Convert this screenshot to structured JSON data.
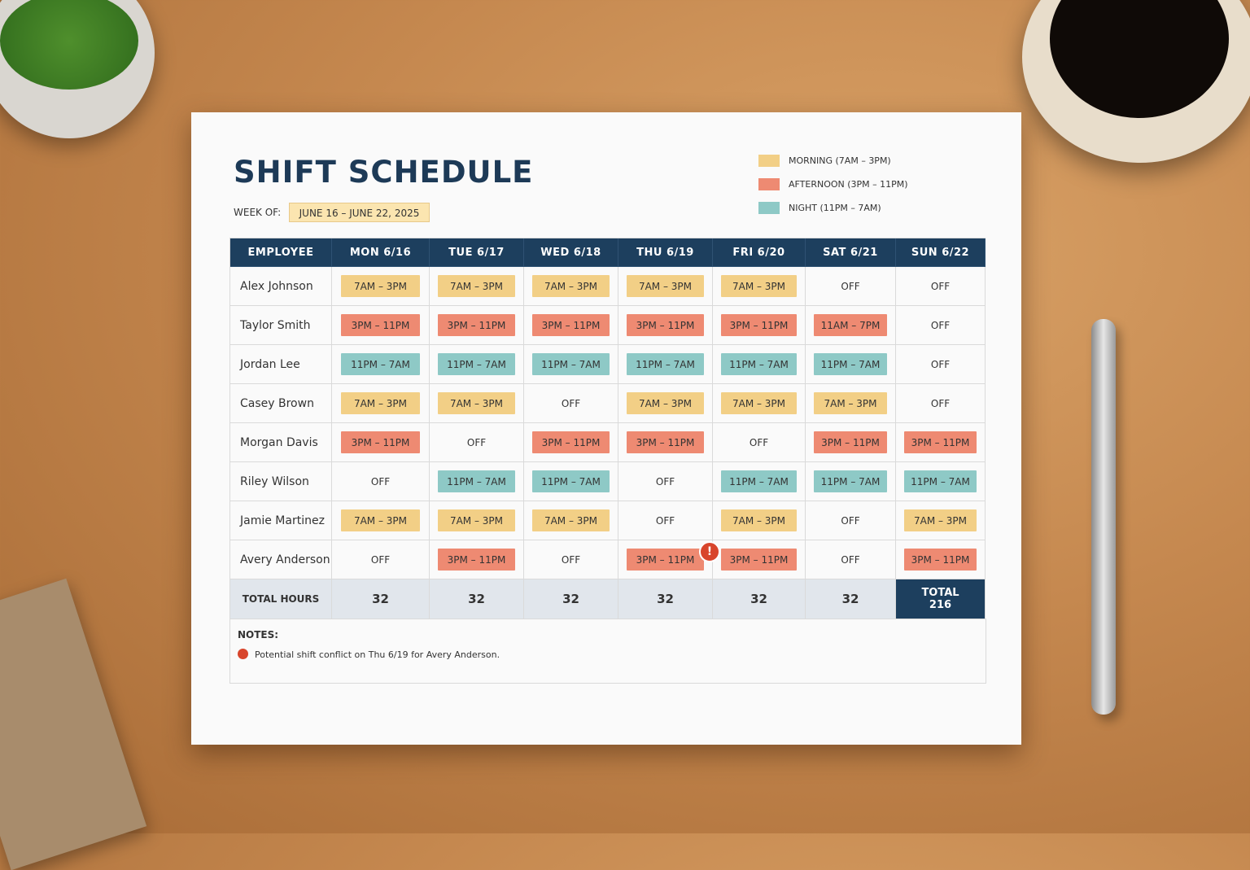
{
  "title": "SHIFT SCHEDULE",
  "week": {
    "label": "WEEK OF:",
    "value": "JUNE 16 – JUNE 22, 2025"
  },
  "legend": [
    {
      "label": "MORNING (7AM – 3PM)",
      "color": "#f2cf86"
    },
    {
      "label": "AFTERNOON (3PM – 11PM)",
      "color": "#ee8a72"
    },
    {
      "label": "NIGHT (11PM – 7AM)",
      "color": "#8ec9c6"
    }
  ],
  "table": {
    "header": [
      "EMPLOYEE",
      "MON 6/16",
      "TUE 6/17",
      "WED 6/18",
      "THU 6/19",
      "FRI 6/20",
      "SAT 6/21",
      "SUN 6/22"
    ],
    "rows": [
      {
        "name": "Alex Johnson",
        "shifts": [
          {
            "text": "7AM – 3PM",
            "color": "#f2cf86"
          },
          {
            "text": "7AM – 3PM",
            "color": "#f2cf86"
          },
          {
            "text": "7AM – 3PM",
            "color": "#f2cf86"
          },
          {
            "text": "7AM – 3PM",
            "color": "#f2cf86"
          },
          {
            "text": "7AM – 3PM",
            "color": "#f2cf86"
          },
          "OFF",
          "OFF"
        ]
      },
      {
        "name": "Taylor Smith",
        "shifts": [
          {
            "text": "3PM – 11PM",
            "color": "#ee8a72"
          },
          {
            "text": "3PM – 11PM",
            "color": "#ee8a72"
          },
          {
            "text": "3PM – 11PM",
            "color": "#ee8a72"
          },
          {
            "text": "3PM – 11PM",
            "color": "#ee8a72"
          },
          {
            "text": "3PM – 11PM",
            "color": "#ee8a72"
          },
          {
            "text": "11AM – 7PM",
            "color": "#ee8a72"
          },
          "OFF"
        ]
      },
      {
        "name": "Jordan Lee",
        "shifts": [
          {
            "text": "11PM – 7AM",
            "color": "#8ec9c6"
          },
          {
            "text": "11PM – 7AM",
            "color": "#8ec9c6"
          },
          {
            "text": "11PM – 7AM",
            "color": "#8ec9c6"
          },
          {
            "text": "11PM – 7AM",
            "color": "#8ec9c6"
          },
          {
            "text": "11PM – 7AM",
            "color": "#8ec9c6"
          },
          {
            "text": "11PM – 7AM",
            "color": "#8ec9c6"
          },
          "OFF"
        ]
      },
      {
        "name": "Casey Brown",
        "shifts": [
          {
            "text": "7AM – 3PM",
            "color": "#f2cf86"
          },
          {
            "text": "7AM – 3PM",
            "color": "#f2cf86"
          },
          "OFF",
          {
            "text": "7AM – 3PM",
            "color": "#f2cf86"
          },
          {
            "text": "7AM – 3PM",
            "color": "#f2cf86"
          },
          {
            "text": "7AM – 3PM",
            "color": "#f2cf86"
          },
          "OFF"
        ]
      },
      {
        "name": "Morgan Davis",
        "shifts": [
          {
            "text": "3PM – 11PM",
            "color": "#ee8a72"
          },
          "OFF",
          {
            "text": "3PM – 11PM",
            "color": "#ee8a72"
          },
          {
            "text": "3PM – 11PM",
            "color": "#ee8a72"
          },
          "OFF",
          {
            "text": "3PM – 11PM",
            "color": "#ee8a72"
          },
          {
            "text": "3PM – 11PM",
            "color": "#ee8a72"
          }
        ]
      },
      {
        "name": "Riley Wilson",
        "shifts": [
          "OFF",
          {
            "text": "11PM – 7AM",
            "color": "#8ec9c6"
          },
          {
            "text": "11PM – 7AM",
            "color": "#8ec9c6"
          },
          "OFF",
          {
            "text": "11PM – 7AM",
            "color": "#8ec9c6"
          },
          {
            "text": "11PM – 7AM",
            "color": "#8ec9c6"
          },
          {
            "text": "11PM – 7AM",
            "color": "#8ec9c6"
          }
        ]
      },
      {
        "name": "Jamie Martinez",
        "shifts": [
          {
            "text": "7AM – 3PM",
            "color": "#f2cf86"
          },
          {
            "text": "7AM – 3PM",
            "color": "#f2cf86"
          },
          {
            "text": "7AM – 3PM",
            "color": "#f2cf86"
          },
          "OFF",
          {
            "text": "7AM – 3PM",
            "color": "#f2cf86"
          },
          "OFF",
          {
            "text": "7AM – 3PM",
            "color": "#f2cf86"
          }
        ]
      },
      {
        "name": "Avery Anderson",
        "shifts": [
          "OFF",
          {
            "text": "3PM – 11PM",
            "color": "#ee8a72"
          },
          "OFF",
          {
            "text": "3PM – 11PM",
            "color": "#ee8a72"
          },
          {
            "text": "3PM – 11PM",
            "color": "#ee8a72"
          },
          "OFF",
          {
            "text": "3PM – 11PM",
            "color": "#ee8a72"
          }
        ]
      }
    ],
    "totals": {
      "label": "TOTAL HOURS",
      "values": [
        32,
        32,
        32,
        32,
        32,
        32
      ],
      "grand_label": "TOTAL",
      "grand_value": 216
    }
  },
  "notes": {
    "label": "NOTES:",
    "items": [
      "Potential shift conflict on Thu 6/19 for Avery Anderson."
    ]
  }
}
